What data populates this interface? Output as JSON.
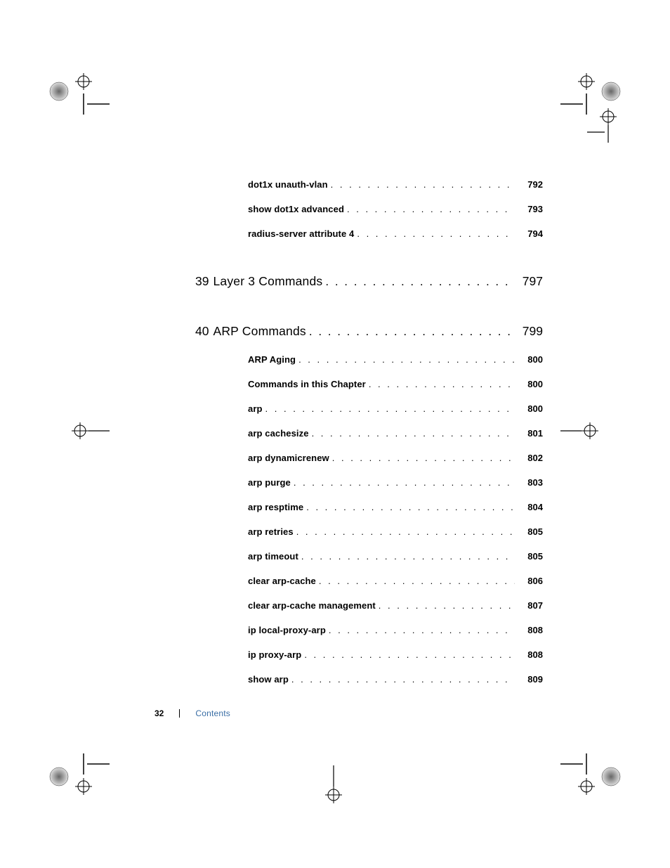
{
  "colors": {
    "text": "#000000",
    "crumb": "#3a6ea5",
    "background": "#ffffff"
  },
  "preceding_items": [
    {
      "label": "dot1x unauth-vlan",
      "page": "792"
    },
    {
      "label": "show dot1x advanced",
      "page": "793"
    },
    {
      "label": "radius-server attribute 4",
      "page": "794"
    }
  ],
  "chapters": [
    {
      "num": "39",
      "title": "Layer 3 Commands",
      "page": "797",
      "items": []
    },
    {
      "num": "40",
      "title": "ARP Commands",
      "page": "799",
      "items": [
        {
          "label": "ARP Aging",
          "page": "800"
        },
        {
          "label": "Commands in this Chapter",
          "page": "800"
        },
        {
          "label": "arp",
          "page": "800"
        },
        {
          "label": "arp cachesize",
          "page": "801"
        },
        {
          "label": "arp dynamicrenew",
          "page": "802"
        },
        {
          "label": "arp purge",
          "page": "803"
        },
        {
          "label": "arp resptime",
          "page": "804"
        },
        {
          "label": "arp retries",
          "page": "805"
        },
        {
          "label": "arp timeout",
          "page": "805"
        },
        {
          "label": "clear arp-cache",
          "page": "806"
        },
        {
          "label": "clear arp-cache management",
          "page": "807"
        },
        {
          "label": "ip local-proxy-arp",
          "page": "808"
        },
        {
          "label": "ip proxy-arp",
          "page": "808"
        },
        {
          "label": "show arp",
          "page": "809"
        }
      ]
    }
  ],
  "footer": {
    "page_number": "32",
    "crumb": "Contents"
  },
  "leader_dots_small": " .  .  .  .  .  .  .  .  .  .  .  .  .  .  .  .  .  .  .  .  .  .  .  .  .  .  .  .  .  .  .  .  .  .  .  .  .  .  .  .",
  "leader_dots_big": ". . . . . . . . . . . . . . . . . . . . . . . . . . . . . . . . . . . . . . ."
}
